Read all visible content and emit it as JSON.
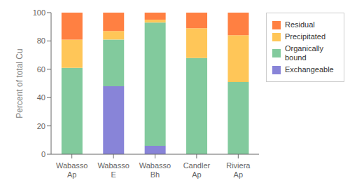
{
  "chart_data": {
    "type": "bar",
    "stacked": true,
    "categories": [
      "Wabasso\nAp",
      "Wabasso\nE",
      "Wabasso\nBh",
      "Candler\nAp",
      "Riviera\nAp"
    ],
    "series": [
      {
        "name": "Exchangeable",
        "color": "#8884d8",
        "values": [
          0,
          48,
          6,
          0,
          0
        ]
      },
      {
        "name": "Organically\nbound",
        "color": "#82ca9d",
        "values": [
          61,
          33,
          87,
          68,
          51
        ]
      },
      {
        "name": "Precipitated",
        "color": "#ffc658",
        "values": [
          20,
          6,
          2,
          21,
          33
        ]
      },
      {
        "name": "Residual",
        "color": "#ff8042",
        "values": [
          19,
          13,
          5,
          11,
          16
        ]
      }
    ],
    "ylabel": "Percent of total Cu",
    "ylim": [
      0,
      100
    ],
    "yticks": [
      0,
      20,
      40,
      60,
      80,
      100
    ],
    "grid": false,
    "legend": "upper right"
  }
}
